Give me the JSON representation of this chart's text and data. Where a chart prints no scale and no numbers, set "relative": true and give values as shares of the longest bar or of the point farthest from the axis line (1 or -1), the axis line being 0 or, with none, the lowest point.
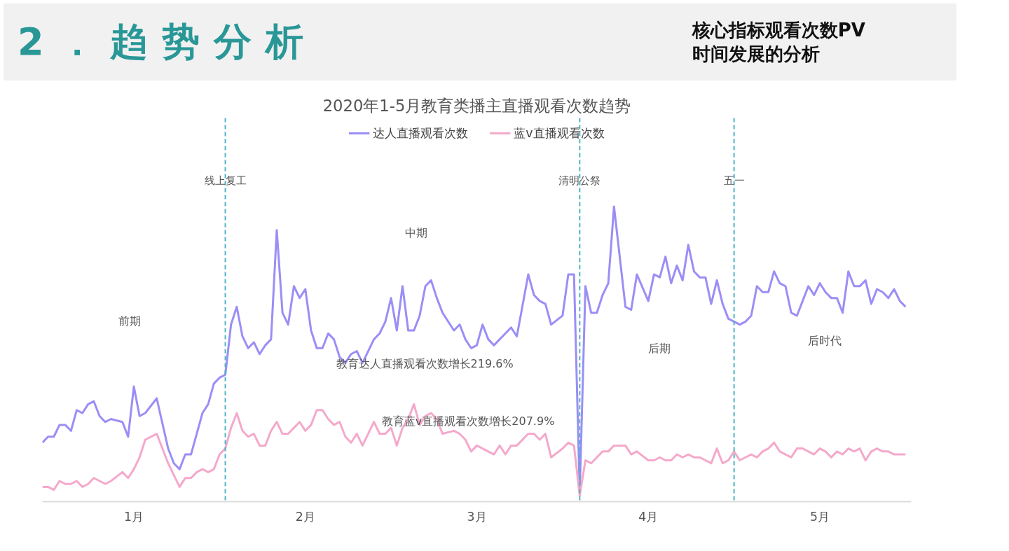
{
  "chart_data": {
    "type": "line",
    "title": "2020年1-5月教育类播主直播观看次数趋势",
    "relative": true,
    "grid": false,
    "legend": "top",
    "marker": "none",
    "line_style": "solid",
    "x": [
      "2020-01-01",
      "2020-01-02",
      "2020-01-03",
      "2020-01-04",
      "2020-01-05",
      "2020-01-06",
      "2020-01-07",
      "2020-01-08",
      "2020-01-09",
      "2020-01-10",
      "2020-01-11",
      "2020-01-12",
      "2020-01-13",
      "2020-01-15",
      "2020-01-16",
      "2020-01-17",
      "2020-01-18",
      "2020-01-19",
      "2020-01-21",
      "2020-01-23",
      "2020-01-24",
      "2020-01-25",
      "2020-01-26",
      "2020-01-27",
      "2020-01-28",
      "2020-01-29",
      "2020-01-30",
      "2020-01-31",
      "2020-02-01",
      "2020-02-02",
      "2020-02-03",
      "2020-02-04",
      "2020-02-05",
      "2020-02-06",
      "2020-02-07",
      "2020-02-08",
      "2020-02-09",
      "2020-02-10",
      "2020-02-11",
      "2020-02-12",
      "2020-02-13",
      "2020-02-14",
      "2020-02-15",
      "2020-02-16",
      "2020-02-17",
      "2020-02-18",
      "2020-02-19",
      "2020-02-20",
      "2020-02-21",
      "2020-02-22",
      "2020-02-23",
      "2020-02-24",
      "2020-02-25",
      "2020-02-26",
      "2020-02-28",
      "2020-02-29",
      "2020-03-01",
      "2020-03-02",
      "2020-03-03",
      "2020-03-04",
      "2020-03-05",
      "2020-03-06",
      "2020-03-07",
      "2020-03-08",
      "2020-03-09",
      "2020-03-10",
      "2020-03-11",
      "2020-03-13",
      "2020-03-14",
      "2020-03-15",
      "2020-03-16",
      "2020-03-17",
      "2020-03-18",
      "2020-03-19",
      "2020-03-20",
      "2020-03-21",
      "2020-03-22",
      "2020-03-23",
      "2020-03-24",
      "2020-03-26",
      "2020-03-27",
      "2020-03-28",
      "2020-03-29",
      "2020-03-30",
      "2020-04-01",
      "2020-04-02",
      "2020-04-03",
      "2020-04-04",
      "2020-04-05",
      "2020-04-06",
      "2020-04-07",
      "2020-04-08",
      "2020-04-09",
      "2020-04-10",
      "2020-04-12",
      "2020-04-13",
      "2020-04-14",
      "2020-04-16",
      "2020-04-17",
      "2020-04-18",
      "2020-04-19",
      "2020-04-20",
      "2020-04-21",
      "2020-04-22",
      "2020-04-23",
      "2020-04-24",
      "2020-04-25",
      "2020-04-26",
      "2020-04-27",
      "2020-04-28",
      "2020-04-29",
      "2020-04-30",
      "2020-05-01",
      "2020-05-02",
      "2020-05-03",
      "2020-05-04",
      "2020-05-05",
      "2020-05-06",
      "2020-05-07",
      "2020-05-08",
      "2020-05-09",
      "2020-05-10",
      "2020-05-11",
      "2020-05-12",
      "2020-05-13",
      "2020-05-14",
      "2020-05-15",
      "2020-05-16",
      "2020-05-17",
      "2020-05-18",
      "2020-05-19",
      "2020-05-20",
      "2020-05-21",
      "2020-05-22",
      "2020-05-23",
      "2020-05-24",
      "2020-05-25",
      "2020-05-26",
      "2020-05-27",
      "2020-05-28",
      "2020-05-29",
      "2020-05-30",
      "2020-05-31"
    ],
    "series": [
      {
        "name": "达人直播观看次数",
        "color": "#9b8ef6",
        "values": [
          0.2,
          0.22,
          0.22,
          0.26,
          0.26,
          0.24,
          0.31,
          0.3,
          0.33,
          0.34,
          0.29,
          0.27,
          0.28,
          0.27,
          0.22,
          0.39,
          0.29,
          0.3,
          0.35,
          0.18,
          0.13,
          0.11,
          0.16,
          0.16,
          0.23,
          0.3,
          0.33,
          0.4,
          0.42,
          0.43,
          0.6,
          0.66,
          0.56,
          0.52,
          0.54,
          0.5,
          0.53,
          0.55,
          0.92,
          0.64,
          0.6,
          0.73,
          0.69,
          0.72,
          0.58,
          0.52,
          0.52,
          0.57,
          0.55,
          0.49,
          0.47,
          0.5,
          0.51,
          0.47,
          0.55,
          0.57,
          0.61,
          0.69,
          0.58,
          0.73,
          0.58,
          0.58,
          0.63,
          0.73,
          0.75,
          0.69,
          0.64,
          0.58,
          0.6,
          0.55,
          0.52,
          0.53,
          0.6,
          0.55,
          0.53,
          0.55,
          0.57,
          0.59,
          0.56,
          0.77,
          0.7,
          0.68,
          0.67,
          0.6,
          0.63,
          0.77,
          0.77,
          0.03,
          0.73,
          0.64,
          0.64,
          0.7,
          0.74,
          1.0,
          0.66,
          0.65,
          0.77,
          0.68,
          0.77,
          0.76,
          0.83,
          0.74,
          0.8,
          0.75,
          0.87,
          0.78,
          0.76,
          0.76,
          0.67,
          0.75,
          0.67,
          0.62,
          0.61,
          0.6,
          0.61,
          0.63,
          0.73,
          0.71,
          0.71,
          0.78,
          0.74,
          0.73,
          0.64,
          0.63,
          0.68,
          0.73,
          0.7,
          0.74,
          0.71,
          0.69,
          0.69,
          0.64,
          0.78,
          0.73,
          0.73,
          0.75,
          0.67,
          0.72,
          0.71,
          0.69,
          0.72,
          0.68,
          0.66
        ]
      },
      {
        "name": "蓝v直播观看次数",
        "color": "#f4a9cb",
        "values": [
          0.05,
          0.05,
          0.04,
          0.07,
          0.06,
          0.06,
          0.07,
          0.05,
          0.06,
          0.08,
          0.07,
          0.06,
          0.07,
          0.1,
          0.08,
          0.11,
          0.15,
          0.21,
          0.23,
          0.13,
          0.09,
          0.05,
          0.08,
          0.08,
          0.1,
          0.11,
          0.1,
          0.11,
          0.16,
          0.18,
          0.25,
          0.3,
          0.24,
          0.22,
          0.23,
          0.19,
          0.19,
          0.24,
          0.27,
          0.23,
          0.23,
          0.25,
          0.27,
          0.24,
          0.26,
          0.31,
          0.31,
          0.28,
          0.26,
          0.27,
          0.22,
          0.2,
          0.23,
          0.19,
          0.27,
          0.23,
          0.23,
          0.25,
          0.19,
          0.25,
          0.28,
          0.33,
          0.26,
          0.29,
          0.3,
          0.28,
          0.23,
          0.24,
          0.23,
          0.21,
          0.17,
          0.19,
          0.18,
          0.17,
          0.16,
          0.19,
          0.16,
          0.19,
          0.19,
          0.23,
          0.23,
          0.21,
          0.23,
          0.15,
          0.18,
          0.2,
          0.19,
          0.02,
          0.14,
          0.13,
          0.15,
          0.17,
          0.17,
          0.19,
          0.19,
          0.16,
          0.17,
          0.14,
          0.14,
          0.15,
          0.14,
          0.14,
          0.16,
          0.15,
          0.16,
          0.15,
          0.15,
          0.14,
          0.13,
          0.18,
          0.13,
          0.14,
          0.17,
          0.14,
          0.15,
          0.16,
          0.15,
          0.17,
          0.18,
          0.2,
          0.17,
          0.16,
          0.15,
          0.18,
          0.18,
          0.17,
          0.16,
          0.18,
          0.17,
          0.15,
          0.17,
          0.16,
          0.18,
          0.17,
          0.18,
          0.14,
          0.17,
          0.18,
          0.17,
          0.17,
          0.16,
          0.16,
          0.16
        ]
      }
    ],
    "xlim": [
      "2020-01-01",
      "2020-06-01"
    ],
    "xticks": [
      {
        "value": "2020-01-17",
        "label": "1月"
      },
      {
        "value": "2020-02-16",
        "label": "2月"
      },
      {
        "value": "2020-03-17",
        "label": "3月"
      },
      {
        "value": "2020-04-16",
        "label": "4月"
      },
      {
        "value": "2020-05-16",
        "label": "5月"
      }
    ],
    "ref_lines": [
      {
        "axis": "x",
        "value": "2020-02-02",
        "label": "线上复工",
        "color": "#4fb3c4",
        "line_style": "dashed"
      },
      {
        "axis": "x",
        "value": "2020-04-04",
        "label": "清明公祭",
        "color": "#4fb3c4",
        "line_style": "dashed"
      },
      {
        "axis": "x",
        "value": "2020-05-01",
        "label": "五一",
        "color": "#4fb3c4",
        "line_style": "dashed"
      }
    ],
    "annotations": [
      "2．趋势分析",
      "核心指标观看次数PV",
      "时间发展的分析",
      "前期",
      "中期",
      "后期",
      "后时代",
      "教育达人直播观看次数增长219.6%",
      "教育蓝v直播观看次数增长207.9%"
    ]
  }
}
